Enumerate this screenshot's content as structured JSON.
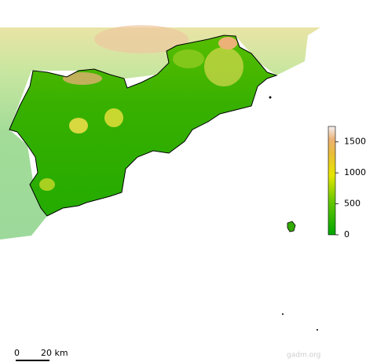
{
  "legend": {
    "range": [
      0,
      1750
    ],
    "ticks": [
      0,
      500,
      1000,
      1500
    ]
  },
  "scale_bar": {
    "start": "0",
    "end": "20 km"
  },
  "credit": "gadm.org"
}
